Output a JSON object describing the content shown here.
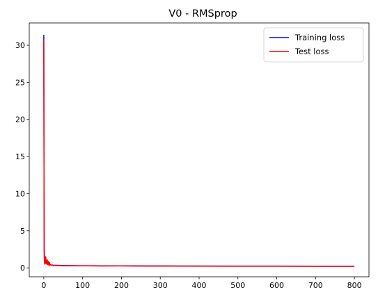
{
  "chart_data": {
    "type": "line",
    "title": "V0 - RMSprop",
    "xlabel": "",
    "ylabel": "",
    "xlim": [
      -37.5,
      837.5
    ],
    "ylim": [
      -1.2,
      33.0
    ],
    "xticks": [
      0,
      100,
      200,
      300,
      400,
      500,
      600,
      700,
      800
    ],
    "yticks": [
      0,
      5,
      10,
      15,
      20,
      25,
      30
    ],
    "grid": false,
    "legend_position": "top-right",
    "series": [
      {
        "name": "Training loss",
        "color": "#0000ff",
        "x": [
          0,
          1,
          2,
          3,
          4,
          5,
          6,
          8,
          10,
          12,
          15,
          20,
          25,
          30,
          40,
          50,
          60,
          80,
          100,
          150,
          200,
          250,
          300,
          400,
          500,
          600,
          700,
          800
        ],
        "y": [
          31.4,
          2.4,
          1.3,
          0.9,
          0.75,
          0.65,
          0.58,
          0.52,
          0.48,
          0.45,
          0.42,
          0.38,
          0.36,
          0.35,
          0.33,
          0.32,
          0.31,
          0.3,
          0.29,
          0.28,
          0.27,
          0.26,
          0.26,
          0.25,
          0.24,
          0.24,
          0.23,
          0.22
        ]
      },
      {
        "name": "Test loss",
        "color": "#ff0000",
        "x": [
          0,
          1,
          2,
          3,
          4,
          5,
          6,
          7,
          8,
          9,
          10,
          11,
          12,
          13,
          14,
          15,
          16,
          18,
          20,
          22,
          25,
          30,
          35,
          40,
          50,
          60,
          80,
          100,
          150,
          200,
          250,
          300,
          400,
          500,
          600,
          700,
          800
        ],
        "y": [
          30.7,
          1.6,
          0.5,
          1.3,
          0.8,
          1.5,
          0.6,
          1.0,
          0.5,
          1.1,
          0.45,
          0.9,
          0.4,
          0.8,
          0.35,
          0.7,
          0.4,
          0.45,
          0.35,
          0.4,
          0.3,
          0.35,
          0.3,
          0.32,
          0.28,
          0.3,
          0.27,
          0.28,
          0.25,
          0.26,
          0.24,
          0.24,
          0.23,
          0.22,
          0.22,
          0.21,
          0.2
        ]
      }
    ]
  }
}
